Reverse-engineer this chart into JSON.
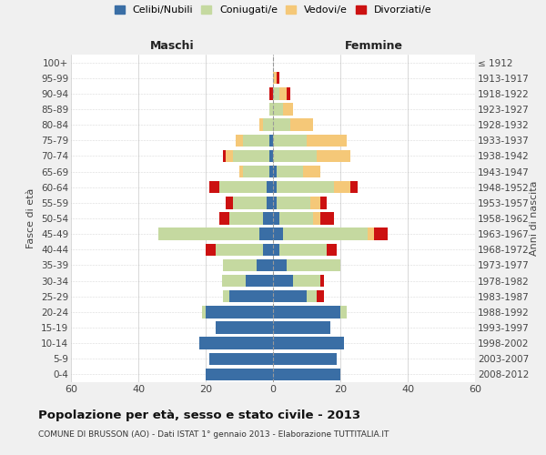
{
  "age_groups": [
    "0-4",
    "5-9",
    "10-14",
    "15-19",
    "20-24",
    "25-29",
    "30-34",
    "35-39",
    "40-44",
    "45-49",
    "50-54",
    "55-59",
    "60-64",
    "65-69",
    "70-74",
    "75-79",
    "80-84",
    "85-89",
    "90-94",
    "95-99",
    "100+"
  ],
  "birth_years": [
    "2008-2012",
    "2003-2007",
    "1998-2002",
    "1993-1997",
    "1988-1992",
    "1983-1987",
    "1978-1982",
    "1973-1977",
    "1968-1972",
    "1963-1967",
    "1958-1962",
    "1953-1957",
    "1948-1952",
    "1943-1947",
    "1938-1942",
    "1933-1937",
    "1928-1932",
    "1923-1927",
    "1918-1922",
    "1913-1917",
    "≤ 1912"
  ],
  "colors": {
    "celibe": "#3a6ea5",
    "coniugato": "#c5d9a0",
    "vedovo": "#f5c878",
    "divorziato": "#cc1111"
  },
  "males": {
    "celibe": [
      20,
      19,
      22,
      17,
      20,
      13,
      8,
      5,
      3,
      4,
      3,
      2,
      2,
      1,
      1,
      1,
      0,
      0,
      0,
      0,
      0
    ],
    "coniugato": [
      0,
      0,
      0,
      0,
      1,
      2,
      7,
      10,
      14,
      30,
      10,
      10,
      14,
      8,
      11,
      8,
      3,
      1,
      0,
      0,
      0
    ],
    "vedovo": [
      0,
      0,
      0,
      0,
      0,
      0,
      0,
      0,
      0,
      0,
      0,
      0,
      0,
      1,
      2,
      2,
      1,
      0,
      0,
      0,
      0
    ],
    "divorziato": [
      0,
      0,
      0,
      0,
      0,
      0,
      0,
      0,
      3,
      0,
      3,
      2,
      3,
      0,
      1,
      0,
      0,
      0,
      1,
      0,
      0
    ]
  },
  "females": {
    "nubile": [
      20,
      19,
      21,
      17,
      20,
      10,
      6,
      4,
      2,
      3,
      2,
      1,
      1,
      1,
      0,
      0,
      0,
      0,
      0,
      0,
      0
    ],
    "coniugata": [
      0,
      0,
      0,
      0,
      2,
      3,
      8,
      16,
      14,
      25,
      10,
      10,
      17,
      8,
      13,
      10,
      5,
      3,
      2,
      0,
      0
    ],
    "vedova": [
      0,
      0,
      0,
      0,
      0,
      0,
      0,
      0,
      0,
      2,
      2,
      3,
      5,
      5,
      10,
      12,
      7,
      3,
      2,
      1,
      0
    ],
    "divorziata": [
      0,
      0,
      0,
      0,
      0,
      2,
      1,
      0,
      3,
      4,
      4,
      2,
      2,
      0,
      0,
      0,
      0,
      0,
      1,
      1,
      0
    ]
  },
  "xlim": 60,
  "title": "Popolazione per età, sesso e stato civile - 2013",
  "subtitle": "COMUNE DI BRUSSON (AO) - Dati ISTAT 1° gennaio 2013 - Elaborazione TUTTITALIA.IT",
  "ylabel_left": "Fasce di età",
  "ylabel_right": "Anni di nascita",
  "xlabel_maschi": "Maschi",
  "xlabel_femmine": "Femmine",
  "legend_labels": [
    "Celibi/Nubili",
    "Coniugati/e",
    "Vedovi/e",
    "Divorziati/e"
  ],
  "background_color": "#f0f0f0",
  "plot_background": "#ffffff"
}
